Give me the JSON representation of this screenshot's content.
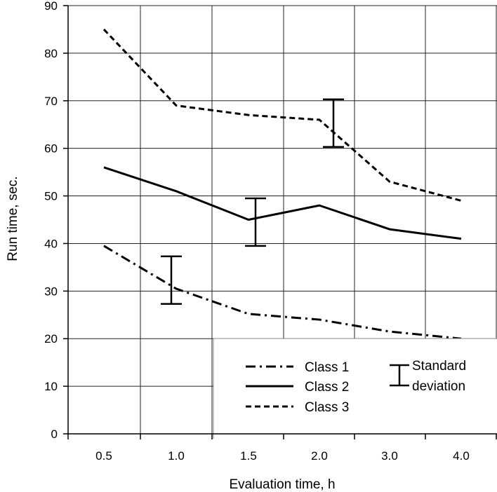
{
  "chart_data": {
    "type": "line",
    "title": "",
    "xlabel": "Evaluation time, h",
    "ylabel": "Run time, sec.",
    "categories": [
      "0.5",
      "1.0",
      "1.5",
      "2.0",
      "3.0",
      "4.0"
    ],
    "y_ticks": [
      "0",
      "10",
      "20",
      "30",
      "40",
      "50",
      "60",
      "70",
      "80",
      "90"
    ],
    "ylim": [
      0,
      90
    ],
    "grid": true,
    "legend_position": "bottom-right",
    "series": [
      {
        "name": "Class 1",
        "style": "dash-dot",
        "values": [
          39.5,
          30.5,
          25.2,
          24.0,
          21.5,
          20.0
        ]
      },
      {
        "name": "Class 2",
        "style": "solid",
        "values": [
          56,
          51,
          45,
          48,
          43,
          41
        ]
      },
      {
        "name": "Class 3",
        "style": "dashed",
        "values": [
          85,
          69,
          67,
          66,
          53,
          49
        ]
      }
    ],
    "error_bars": [
      {
        "x": "1.0",
        "y": 32.3,
        "low": 27.3,
        "high": 37.3
      },
      {
        "x": "1.5",
        "y": 44.5,
        "low": 39.5,
        "high": 49.5
      },
      {
        "x": "2.0",
        "y": 65.3,
        "low": 60.3,
        "high": 70.3
      }
    ],
    "legend_error_bar_label": [
      "Standard",
      "deviation"
    ]
  }
}
